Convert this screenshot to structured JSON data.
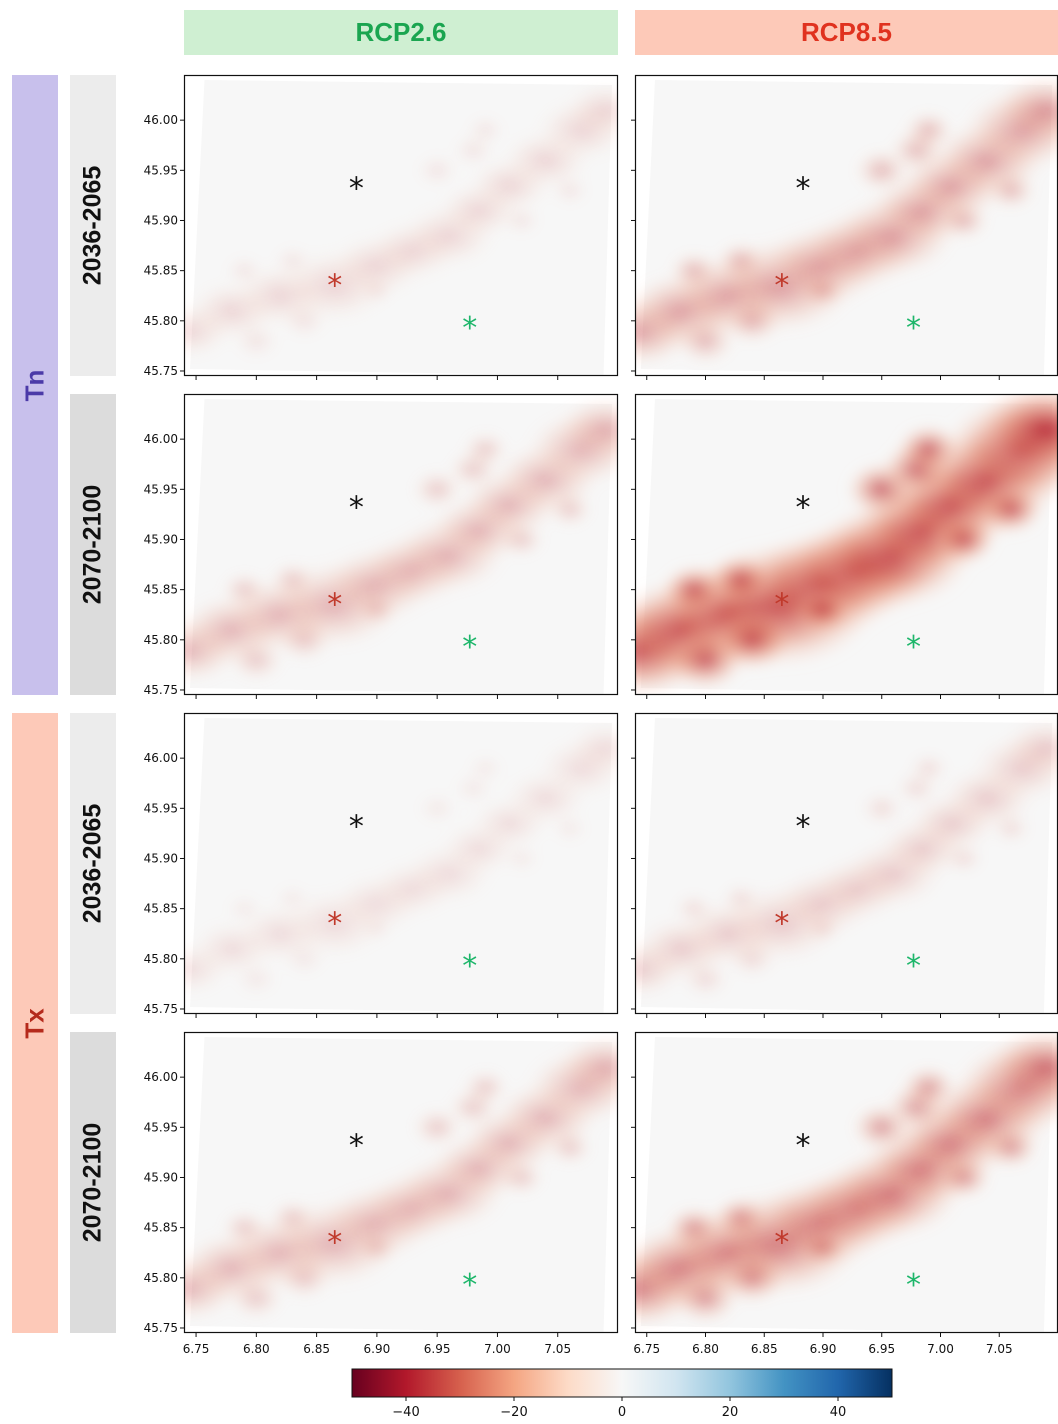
{
  "chart_data": {
    "type": "heatmap",
    "columns": [
      {
        "label": "RCP2.6",
        "color": "#1aa550",
        "bg": "#cfefd2"
      },
      {
        "label": "RCP8.5",
        "color": "#e0321f",
        "bg": "#fdc9b8"
      }
    ],
    "variables": [
      {
        "label": "Tn",
        "color": "#4b3aa8",
        "bg": "#c8c0ec",
        "periods": [
          "2036-2065",
          "2070-2100"
        ]
      },
      {
        "label": "Tx",
        "color": "#b52a1c",
        "bg": "#fdc9b8",
        "periods": [
          "2036-2065",
          "2070-2100"
        ]
      }
    ],
    "period_bg": [
      "#ececec",
      "#dcdcdc"
    ],
    "xlim": [
      6.74,
      7.1
    ],
    "ylim": [
      45.745,
      46.045
    ],
    "xticks": [
      6.75,
      6.8,
      6.85,
      6.9,
      6.95,
      7.0,
      7.05
    ],
    "xtick_labels": [
      "6.75",
      "6.80",
      "6.85",
      "6.90",
      "6.95",
      "7.00",
      "7.05"
    ],
    "yticks": [
      45.75,
      45.8,
      45.85,
      45.9,
      45.95,
      46.0
    ],
    "ytick_labels": [
      "45.75",
      "45.80",
      "45.85",
      "45.90",
      "45.95",
      "46.00"
    ],
    "markers": [
      {
        "lon": 6.883,
        "lat": 45.932,
        "color": "#111111"
      },
      {
        "lon": 6.865,
        "lat": 45.835,
        "color": "#c0392b"
      },
      {
        "lon": 6.977,
        "lat": 45.793,
        "color": "#1db66a"
      }
    ],
    "intensity": [
      [
        0.15,
        0.45
      ],
      [
        0.35,
        0.85
      ],
      [
        0.1,
        0.22
      ],
      [
        0.35,
        0.6
      ]
    ],
    "colorbar": {
      "range": [
        -50,
        50
      ],
      "ticks": [
        -40,
        -20,
        0,
        20,
        40
      ],
      "tick_labels": [
        "−40",
        "−20",
        "0",
        "20",
        "40"
      ],
      "colors": [
        "#67001f",
        "#b2182b",
        "#d6604d",
        "#f4a582",
        "#fddbc7",
        "#f7f7f7",
        "#d1e5f0",
        "#92c5de",
        "#4393c3",
        "#2166ac",
        "#053061"
      ]
    }
  }
}
